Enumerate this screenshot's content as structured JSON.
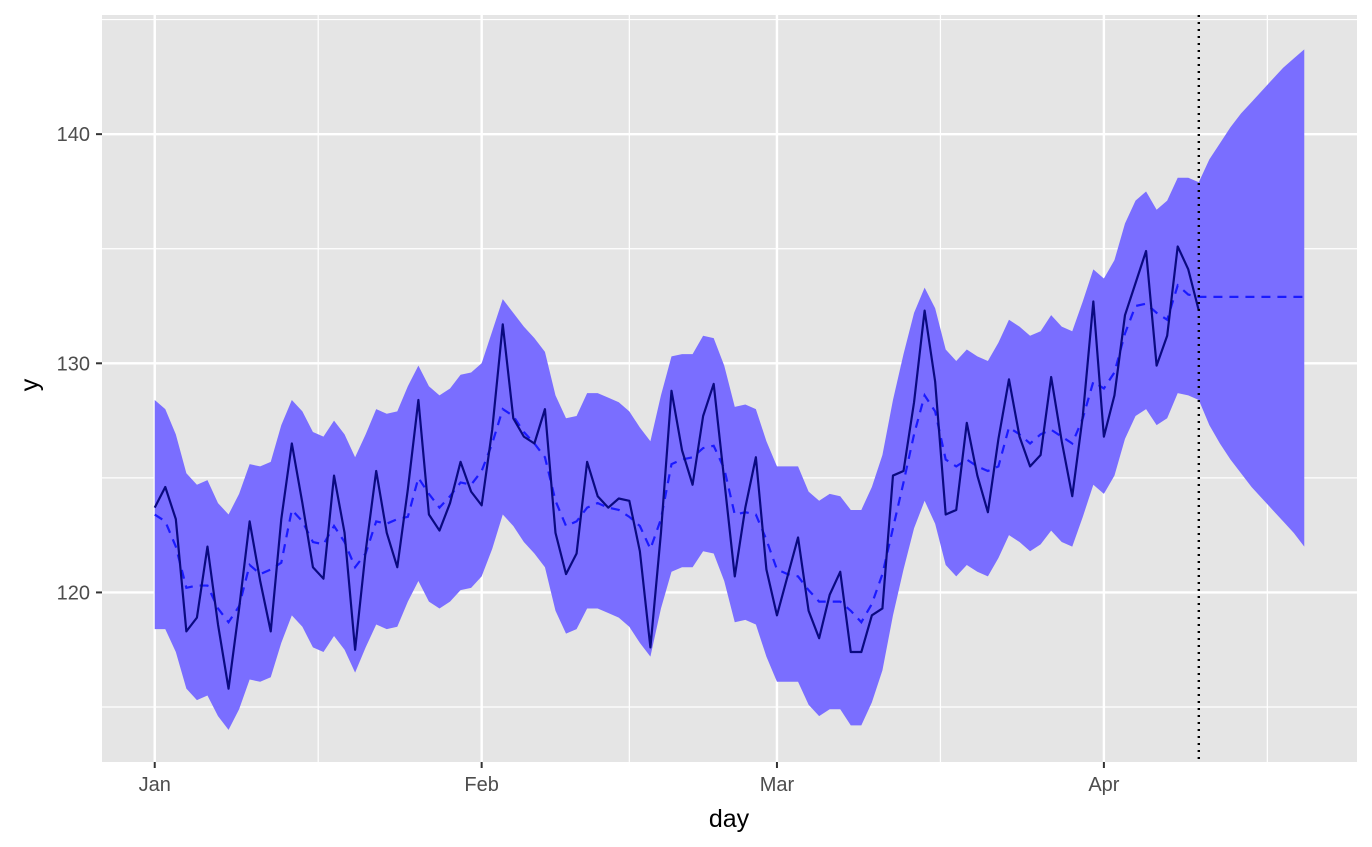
{
  "chart_data": {
    "type": "line",
    "title": "",
    "xlabel": "day",
    "ylabel": "y",
    "x_tick_labels": [
      "Jan",
      "Feb",
      "Mar",
      "Apr"
    ],
    "x_tick_dates": [
      "2022-01-01",
      "2022-02-01",
      "2022-03-01",
      "2022-04-01"
    ],
    "y_tick_labels": [
      "120",
      "130",
      "140"
    ],
    "y_ticks": [
      120,
      130,
      140
    ],
    "ylim": [
      112.6,
      145.2
    ],
    "xlim": [
      "2021-12-27",
      "2022-04-25"
    ],
    "grid": true,
    "forecast_start": "2022-04-10",
    "colors": {
      "panel": "#e5e5e5",
      "grid": "#ffffff",
      "band": "#7a6eff",
      "observed": "#0a0a80",
      "fitted": "#1a1aff",
      "cutoff": "#000000"
    },
    "series": [
      {
        "name": "",
        "start": "2022-01-01",
        "values": [
          123.7,
          124.6,
          123.2,
          118.3,
          118.9,
          122.0,
          118.6,
          115.8,
          119.3,
          123.1,
          120.5,
          118.3,
          123.2,
          126.5,
          123.9,
          121.1,
          120.6,
          125.1,
          122.6,
          117.5,
          121.8,
          125.3,
          122.6,
          121.1,
          124.5,
          128.4,
          123.4,
          122.7,
          123.9,
          125.7,
          124.4,
          123.8,
          127.1,
          131.7,
          127.6,
          126.8,
          126.5,
          128.0,
          122.6,
          120.8,
          121.7,
          125.7,
          124.2,
          123.7,
          124.1,
          124.0,
          121.8,
          117.6,
          122.6,
          128.8,
          126.2,
          124.7,
          127.7,
          129.1,
          124.9,
          120.7,
          123.7,
          125.9,
          121.0,
          119.0,
          120.7,
          122.4,
          119.2,
          118.0,
          119.9,
          120.9,
          117.4,
          117.4,
          119.0,
          119.3,
          125.1,
          125.3,
          128.3,
          132.3,
          129.2,
          123.4,
          123.6,
          127.4,
          125.1,
          123.5,
          126.7,
          129.3,
          126.8,
          125.5,
          126.0,
          129.4,
          126.6,
          124.2,
          127.7,
          132.7,
          126.8,
          128.6,
          132.1,
          133.5,
          134.9,
          129.9,
          131.2,
          135.1,
          134.1,
          132.3
        ]
      },
      {
        "name": "",
        "start": "2022-01-01",
        "values": [
          123.4,
          123.1,
          122.0,
          120.2,
          120.3,
          120.3,
          119.3,
          118.7,
          119.4,
          121.2,
          120.8,
          121.0,
          121.3,
          123.6,
          123.1,
          122.2,
          122.1,
          122.9,
          122.2,
          121.1,
          121.7,
          123.1,
          123.0,
          123.2,
          123.3,
          125.0,
          124.3,
          123.7,
          124.2,
          124.8,
          124.7,
          125.3,
          126.5,
          128.0,
          127.7,
          127.0,
          126.5,
          125.9,
          124.0,
          122.9,
          123.1,
          123.7,
          123.9,
          123.7,
          123.6,
          123.3,
          122.9,
          121.9,
          123.2,
          125.6,
          125.8,
          125.9,
          126.3,
          126.4,
          125.4,
          123.4,
          123.5,
          123.4,
          122.3,
          121.0,
          120.8,
          120.7,
          120.1,
          119.6,
          119.6,
          119.6,
          119.2,
          118.7,
          119.5,
          120.8,
          122.8,
          124.8,
          126.9,
          128.6,
          127.9,
          125.8,
          125.5,
          125.8,
          125.5,
          125.3,
          125.5,
          127.2,
          126.9,
          126.5,
          126.9,
          127.1,
          126.8,
          126.5,
          127.6,
          129.2,
          128.9,
          129.6,
          131.3,
          132.5,
          132.6,
          132.2,
          131.9,
          133.4,
          133.0,
          132.9,
          132.9,
          132.9,
          132.9,
          132.9,
          132.9,
          132.9,
          132.9,
          132.9,
          132.9,
          132.9
        ]
      }
    ],
    "band": {
      "start": "2022-01-01",
      "upper": [
        128.4,
        128.0,
        126.9,
        125.2,
        124.7,
        124.9,
        123.9,
        123.4,
        124.3,
        125.6,
        125.5,
        125.7,
        127.3,
        128.4,
        127.9,
        127.0,
        126.8,
        127.5,
        126.9,
        125.9,
        126.9,
        128.0,
        127.8,
        127.9,
        129.0,
        129.9,
        129.0,
        128.6,
        128.9,
        129.5,
        129.6,
        130.0,
        131.4,
        132.8,
        132.2,
        131.6,
        131.1,
        130.5,
        128.6,
        127.6,
        127.7,
        128.7,
        128.7,
        128.5,
        128.3,
        127.9,
        127.2,
        126.6,
        128.6,
        130.3,
        130.4,
        130.4,
        131.2,
        131.1,
        129.9,
        128.1,
        128.2,
        128.0,
        126.6,
        125.5,
        125.5,
        125.5,
        124.4,
        124.0,
        124.3,
        124.2,
        123.6,
        123.6,
        124.6,
        126.0,
        128.4,
        130.4,
        132.2,
        133.3,
        132.4,
        130.6,
        130.1,
        130.6,
        130.3,
        130.1,
        130.9,
        131.9,
        131.6,
        131.2,
        131.4,
        132.1,
        131.6,
        131.4,
        132.7,
        134.1,
        133.7,
        134.5,
        136.1,
        137.1,
        137.5,
        136.7,
        137.1,
        138.1,
        138.1,
        137.9,
        138.9,
        139.6,
        140.3,
        140.9,
        141.4,
        141.9,
        142.4,
        142.9,
        143.3,
        143.7
      ],
      "lower": [
        118.4,
        118.4,
        117.4,
        115.8,
        115.3,
        115.5,
        114.6,
        114.0,
        114.9,
        116.2,
        116.1,
        116.3,
        117.8,
        119.0,
        118.5,
        117.6,
        117.4,
        118.1,
        117.5,
        116.5,
        117.6,
        118.6,
        118.4,
        118.5,
        119.6,
        120.5,
        119.6,
        119.3,
        119.6,
        120.1,
        120.2,
        120.7,
        121.9,
        123.4,
        122.9,
        122.2,
        121.7,
        121.1,
        119.2,
        118.2,
        118.4,
        119.3,
        119.3,
        119.1,
        118.9,
        118.5,
        117.8,
        117.2,
        119.3,
        120.9,
        121.1,
        121.1,
        121.8,
        121.7,
        120.5,
        118.7,
        118.8,
        118.6,
        117.2,
        116.1,
        116.1,
        116.1,
        115.1,
        114.6,
        114.9,
        114.9,
        114.2,
        114.2,
        115.2,
        116.6,
        119.0,
        121.0,
        122.8,
        124.0,
        123.0,
        121.2,
        120.7,
        121.2,
        120.9,
        120.7,
        121.5,
        122.5,
        122.2,
        121.8,
        122.1,
        122.7,
        122.2,
        122.0,
        123.3,
        124.7,
        124.3,
        125.1,
        126.7,
        127.7,
        128.0,
        127.3,
        127.6,
        128.7,
        128.6,
        128.4,
        127.3,
        126.5,
        125.8,
        125.2,
        124.6,
        124.1,
        123.6,
        123.1,
        122.6,
        122.0
      ]
    }
  }
}
